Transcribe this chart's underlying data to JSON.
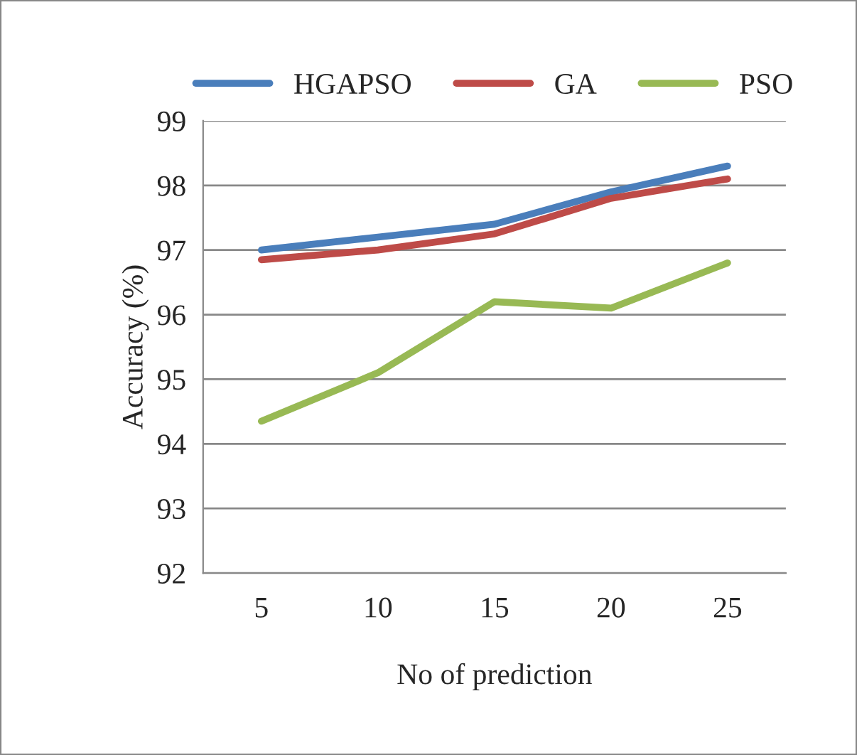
{
  "chart_data": {
    "type": "line",
    "xlabel": "No of prediction",
    "ylabel": "Accuracy (%)",
    "categories": [
      "5",
      "10",
      "15",
      "20",
      "25"
    ],
    "series": [
      {
        "name": "HGAPSO",
        "color": "#4a7ebb",
        "values": [
          97.0,
          97.2,
          97.4,
          97.9,
          98.3
        ]
      },
      {
        "name": "GA",
        "color": "#be4b48",
        "values": [
          96.85,
          97.0,
          97.25,
          97.8,
          98.1
        ]
      },
      {
        "name": "PSO",
        "color": "#98b954",
        "values": [
          94.35,
          95.1,
          96.2,
          96.1,
          96.8
        ]
      }
    ],
    "ylim": [
      92,
      99
    ],
    "yticks": [
      92,
      93,
      94,
      95,
      96,
      97,
      98,
      99
    ],
    "grid": "y",
    "legend": "top",
    "marker": "none",
    "line_style": "solid"
  }
}
